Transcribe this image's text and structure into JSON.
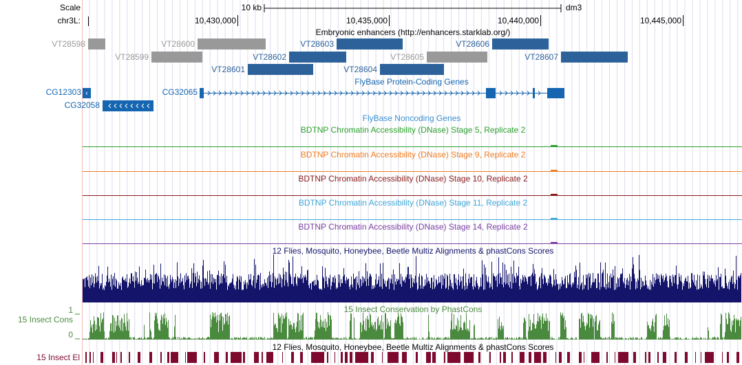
{
  "ruler": {
    "scale_label": "Scale",
    "scale_size": "10 kb",
    "assembly": "dm3",
    "chrom": "chr3L:",
    "positions": [
      "10,430,000",
      "10,435,000",
      "10,440,000",
      "10,445,000"
    ]
  },
  "enhancers": {
    "title": "Embryonic enhancers (http://enhancers.starklab.org/)",
    "items": [
      {
        "name": "VT28598",
        "color": "#999999"
      },
      {
        "name": "VT28600",
        "color": "#999999"
      },
      {
        "name": "VT28603",
        "color": "#2c6199"
      },
      {
        "name": "VT28606",
        "color": "#2c6199"
      },
      {
        "name": "VT28599",
        "color": "#999999"
      },
      {
        "name": "VT28602",
        "color": "#2c6199"
      },
      {
        "name": "VT28605",
        "color": "#999999"
      },
      {
        "name": "VT28607",
        "color": "#2c6199"
      },
      {
        "name": "VT28601",
        "color": "#2c6199"
      },
      {
        "name": "VT28604",
        "color": "#2c6199"
      }
    ]
  },
  "protein_coding": {
    "title": "FlyBase Protein-Coding Genes",
    "color": "#1565b0",
    "genes": [
      "CG12303",
      "CG32065",
      "CG32058"
    ]
  },
  "noncoding": {
    "title": "FlyBase Noncoding Genes",
    "color": "#3a8fd0"
  },
  "dnase": [
    {
      "title": "BDTNP Chromatin Accessibility (DNase) Stage 5, Replicate 2",
      "color": "#2ca02c"
    },
    {
      "title": "BDTNP Chromatin Accessibility (DNase) Stage 9, Replicate 2",
      "color": "#f07c20"
    },
    {
      "title": "BDTNP Chromatin Accessibility (DNase) Stage 10, Replicate 2",
      "color": "#8b1a1a"
    },
    {
      "title": "BDTNP Chromatin Accessibility (DNase) Stage 11, Replicate 2",
      "color": "#3fa7d6"
    },
    {
      "title": "BDTNP Chromatin Accessibility (DNase) Stage 14, Replicate 2",
      "color": "#7b3fa0"
    }
  ],
  "multiz": {
    "title": "12 Flies, Mosquito, Honeybee, Beetle Multiz Alignments & phastCons Scores",
    "color": "#14146b"
  },
  "phastcons": {
    "title": "15 Insect Conservation by PhastCons",
    "label": "15 Insect Cons",
    "max": 1,
    "min": 0,
    "color": "#4a8a3e"
  },
  "elements": {
    "title": "12 Flies, Mosquito, Honeybee, Beetle Multiz Alignments & phastCons Scores",
    "label": "15 Insect El",
    "color": "#7d0a2e"
  }
}
